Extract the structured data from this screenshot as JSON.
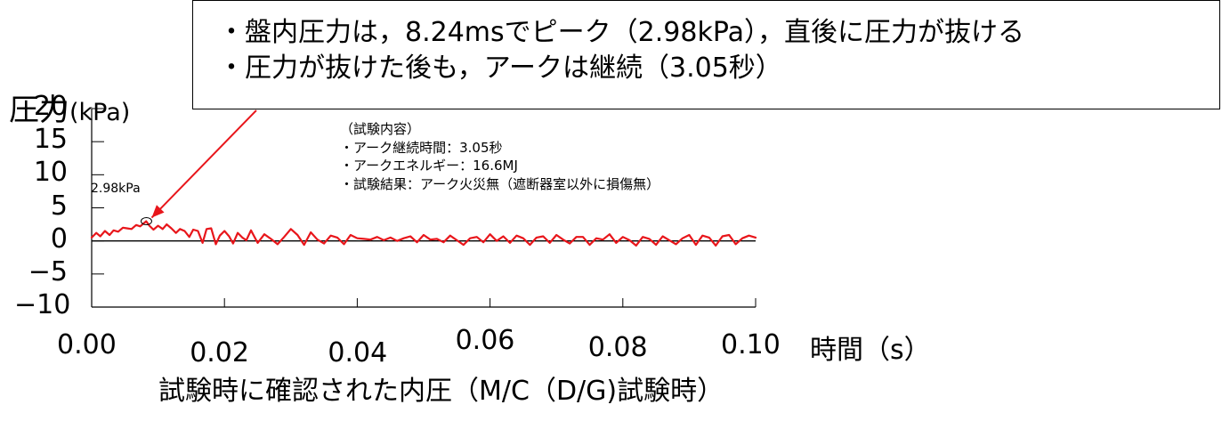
{
  "callout": {
    "line1": "・盤内圧力は，8.24msでピーク（2.98kPa），直後に圧力が抜ける",
    "line2": "・圧力が抜けた後も，アークは継続（3.05秒）"
  },
  "notes": {
    "heading": "（試験内容）",
    "items": [
      "・アーク継続時間：3.05秒",
      "・アークエネルギー：16.6MJ",
      "・試験結果：アーク火災無（遮断器室以外に損傷無）"
    ]
  },
  "caption": "試験時に確認された内圧（M/C（D/G)試験時）",
  "chart_data": {
    "type": "line",
    "ylabel_main": "圧力",
    "ylabel_unit": "(kPa)",
    "xlabel": "時間（s）",
    "x_ticks": [
      "0.00",
      "0.02",
      "0.04",
      "0.06",
      "0.08",
      "0.10"
    ],
    "y_ticks": [
      "20",
      "15",
      "10",
      "5",
      "0",
      "−5",
      "−10"
    ],
    "xlim": [
      0,
      0.1
    ],
    "ylim": [
      -10,
      20
    ],
    "series_color": "#e8161b",
    "peak": {
      "x": 0.00824,
      "y": 2.98,
      "label": "2.98kPa"
    },
    "series": [
      {
        "x": [
          0.0,
          0.0007,
          0.0013,
          0.002,
          0.0027,
          0.0033,
          0.004,
          0.0047,
          0.0053,
          0.006,
          0.0067,
          0.0073,
          0.008,
          0.0082,
          0.0087,
          0.0093,
          0.01,
          0.0107,
          0.0113,
          0.012,
          0.0127,
          0.0133,
          0.014,
          0.0147,
          0.0153,
          0.016,
          0.0167,
          0.0173,
          0.018,
          0.0187,
          0.0193,
          0.02,
          0.0207,
          0.0213,
          0.022,
          0.0227,
          0.0233,
          0.024,
          0.025,
          0.026,
          0.027,
          0.028,
          0.029,
          0.03,
          0.031,
          0.032,
          0.033,
          0.034,
          0.035,
          0.036,
          0.037,
          0.038,
          0.039,
          0.04,
          0.041,
          0.042,
          0.043,
          0.044,
          0.045,
          0.046,
          0.047,
          0.048,
          0.049,
          0.05,
          0.051,
          0.052,
          0.053,
          0.054,
          0.055,
          0.056,
          0.057,
          0.058,
          0.059,
          0.06,
          0.061,
          0.062,
          0.063,
          0.064,
          0.065,
          0.066,
          0.067,
          0.068,
          0.069,
          0.07,
          0.071,
          0.072,
          0.073,
          0.074,
          0.075,
          0.076,
          0.077,
          0.078,
          0.079,
          0.08,
          0.081,
          0.082,
          0.083,
          0.084,
          0.085,
          0.086,
          0.087,
          0.088,
          0.089,
          0.09,
          0.091,
          0.092,
          0.093,
          0.094,
          0.095,
          0.096,
          0.097,
          0.098,
          0.099,
          0.1
        ],
        "y": [
          0.5,
          1.2,
          0.7,
          1.5,
          0.9,
          1.6,
          1.4,
          2.0,
          1.9,
          1.8,
          2.4,
          2.2,
          2.8,
          2.98,
          2.3,
          1.7,
          2.3,
          1.8,
          2.5,
          1.9,
          1.2,
          1.8,
          1.5,
          0.6,
          1.7,
          1.5,
          -0.3,
          1.8,
          1.9,
          -0.5,
          0.8,
          1.5,
          0.7,
          -0.4,
          1.2,
          0.5,
          0.1,
          1.6,
          -0.3,
          1.0,
          0.3,
          -0.5,
          0.6,
          1.8,
          0.9,
          -0.6,
          1.3,
          0.2,
          -0.4,
          0.8,
          0.5,
          -0.5,
          0.9,
          0.4,
          0.3,
          0.2,
          0.6,
          0.1,
          0.5,
          0.0,
          0.4,
          0.7,
          -0.2,
          0.9,
          0.2,
          0.3,
          -0.2,
          0.8,
          0.1,
          -0.6,
          0.4,
          0.6,
          -0.2,
          1.0,
          0.0,
          0.7,
          -0.3,
          0.8,
          0.4,
          -0.6,
          0.5,
          0.7,
          -0.3,
          0.9,
          0.2,
          -0.4,
          0.6,
          0.6,
          -0.6,
          0.4,
          0.2,
          1.0,
          -0.3,
          0.6,
          0.1,
          -0.7,
          0.6,
          0.3,
          -0.6,
          0.7,
          0.1,
          -0.5,
          0.4,
          0.9,
          -0.6,
          0.8,
          0.5,
          -0.7,
          0.7,
          0.9,
          -0.5,
          0.4,
          0.8,
          0.5
        ]
      }
    ]
  }
}
